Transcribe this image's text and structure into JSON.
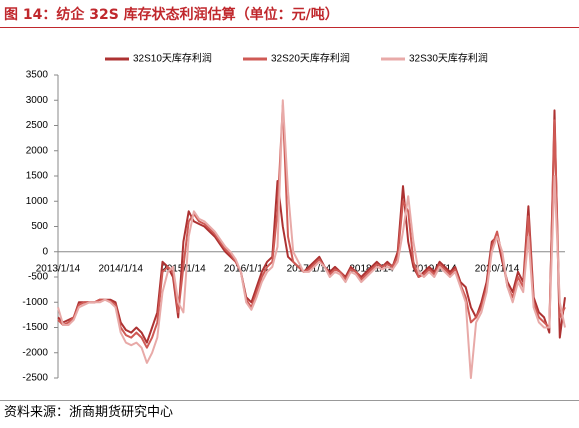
{
  "title": "图 14：纺企 32S 库存状态利润估算（单位：元/吨）",
  "source": "资料来源：浙商期货研究中心",
  "chart_data": {
    "type": "line",
    "categories": [
      "2013/1/14",
      null,
      null,
      null,
      null,
      null,
      null,
      null,
      null,
      null,
      null,
      null,
      "2014/1/14",
      null,
      null,
      null,
      null,
      null,
      null,
      null,
      null,
      null,
      null,
      null,
      "2015/1/14",
      null,
      null,
      null,
      null,
      null,
      null,
      null,
      null,
      null,
      null,
      null,
      "2016/1/14",
      null,
      null,
      null,
      null,
      null,
      null,
      null,
      null,
      null,
      null,
      null,
      "2017/1/14",
      null,
      null,
      null,
      null,
      null,
      null,
      null,
      null,
      null,
      null,
      null,
      "2018/1/14",
      null,
      null,
      null,
      null,
      null,
      null,
      null,
      null,
      null,
      null,
      null,
      "2019/1/14",
      null,
      null,
      null,
      null,
      null,
      null,
      null,
      null,
      null,
      null,
      null,
      "2020/1/14",
      null,
      null,
      null,
      null,
      null,
      null,
      null,
      null,
      null,
      null,
      null,
      null,
      null
    ],
    "ylim": [
      -2500,
      3500
    ],
    "yticks": [
      -2500,
      -2000,
      -1500,
      -1000,
      -500,
      0,
      500,
      1000,
      1500,
      2000,
      2500,
      3000,
      3500
    ],
    "series": [
      {
        "name": "32S10天库存利润",
        "color": "#ad3232",
        "values": [
          -1300,
          -1400,
          -1350,
          -1300,
          -1000,
          -1000,
          -1000,
          -1000,
          -950,
          -950,
          -950,
          -1000,
          -1400,
          -1550,
          -1600,
          -1500,
          -1600,
          -1800,
          -1500,
          -1200,
          -200,
          -300,
          -500,
          -1300,
          200,
          800,
          600,
          550,
          500,
          400,
          300,
          150,
          0,
          -100,
          -200,
          -400,
          -900,
          -1000,
          -700,
          -400,
          -200,
          -100,
          1400,
          500,
          -100,
          -200,
          -300,
          -400,
          -300,
          -200,
          -100,
          -300,
          -400,
          -300,
          -400,
          -500,
          -300,
          -400,
          -500,
          -400,
          -300,
          -200,
          -300,
          -200,
          -300,
          0,
          1300,
          200,
          -300,
          -500,
          -400,
          -300,
          -400,
          -200,
          -300,
          -400,
          -300,
          -600,
          -700,
          -1100,
          -1300,
          -1000,
          -600,
          200,
          300,
          -200,
          -600,
          -800,
          -400,
          -600,
          900,
          -900,
          -1200,
          -1300,
          -1600,
          2800,
          -1700,
          -900
        ]
      },
      {
        "name": "32S20天库存利润",
        "color": "#cf5a55",
        "values": [
          -1350,
          -1450,
          -1400,
          -1300,
          -1050,
          -1000,
          -1000,
          -1000,
          -950,
          -950,
          -980,
          -1050,
          -1500,
          -1650,
          -1700,
          -1600,
          -1700,
          -1900,
          -1700,
          -1400,
          -400,
          -300,
          -400,
          -1200,
          -300,
          600,
          750,
          600,
          550,
          450,
          350,
          200,
          50,
          -50,
          -200,
          -400,
          -950,
          -1100,
          -800,
          -500,
          -300,
          -200,
          800,
          2900,
          300,
          -200,
          -300,
          -400,
          -350,
          -250,
          -150,
          -300,
          -450,
          -350,
          -400,
          -550,
          -350,
          -400,
          -550,
          -450,
          -350,
          -250,
          -300,
          -250,
          -300,
          -100,
          1000,
          800,
          -200,
          -500,
          -450,
          -350,
          -450,
          -250,
          -350,
          -450,
          -350,
          -650,
          -900,
          -1400,
          -1300,
          -1100,
          -700,
          100,
          400,
          -100,
          -700,
          -900,
          -500,
          -700,
          700,
          -1000,
          -1300,
          -1400,
          -1500,
          2600,
          -1300,
          -1100
        ]
      },
      {
        "name": "32S30天库存利润",
        "color": "#e8aaa8",
        "values": [
          -1100,
          -1450,
          -1450,
          -1350,
          -1100,
          -1050,
          -1000,
          -1000,
          -1000,
          -950,
          -1000,
          -1100,
          -1600,
          -1800,
          -1850,
          -1800,
          -1900,
          -2200,
          -2000,
          -1700,
          -800,
          -400,
          -300,
          -1000,
          -1200,
          300,
          800,
          650,
          600,
          500,
          400,
          250,
          100,
          0,
          -150,
          -400,
          -1000,
          -1150,
          -900,
          -600,
          -400,
          -300,
          100,
          3000,
          1200,
          0,
          -200,
          -400,
          -400,
          -300,
          -200,
          -300,
          -500,
          -400,
          -450,
          -600,
          -400,
          -450,
          -600,
          -500,
          -400,
          -300,
          -350,
          -300,
          -350,
          -200,
          400,
          1100,
          200,
          -400,
          -500,
          -400,
          -500,
          -300,
          -400,
          -500,
          -400,
          -700,
          -1000,
          -2500,
          -1400,
          -1200,
          -800,
          0,
          300,
          0,
          -700,
          -1000,
          -600,
          -800,
          300,
          -1100,
          -1400,
          -1500,
          -1500,
          1500,
          -1000,
          -1500
        ]
      }
    ]
  }
}
